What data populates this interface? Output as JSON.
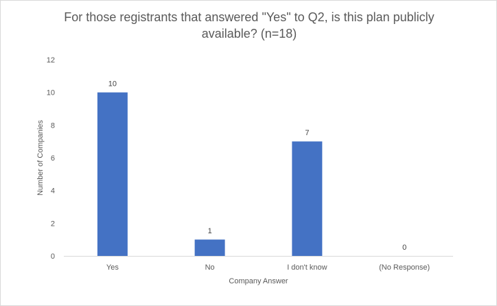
{
  "chart_data": {
    "type": "bar",
    "title": "For those registrants that answered \"Yes\" to Q2, is this plan publicly available? (n=18)",
    "xlabel": "Company Answer",
    "ylabel": "Number of Companies",
    "categories": [
      "Yes",
      "No",
      "I don't know",
      "(No Response)"
    ],
    "values": [
      10,
      1,
      7,
      0
    ],
    "ylim": [
      0,
      12
    ],
    "yticks": [
      0,
      2,
      4,
      6,
      8,
      10,
      12
    ],
    "grid": false,
    "legend": "none",
    "bar_color": "#4472c4",
    "data_labels": true
  }
}
